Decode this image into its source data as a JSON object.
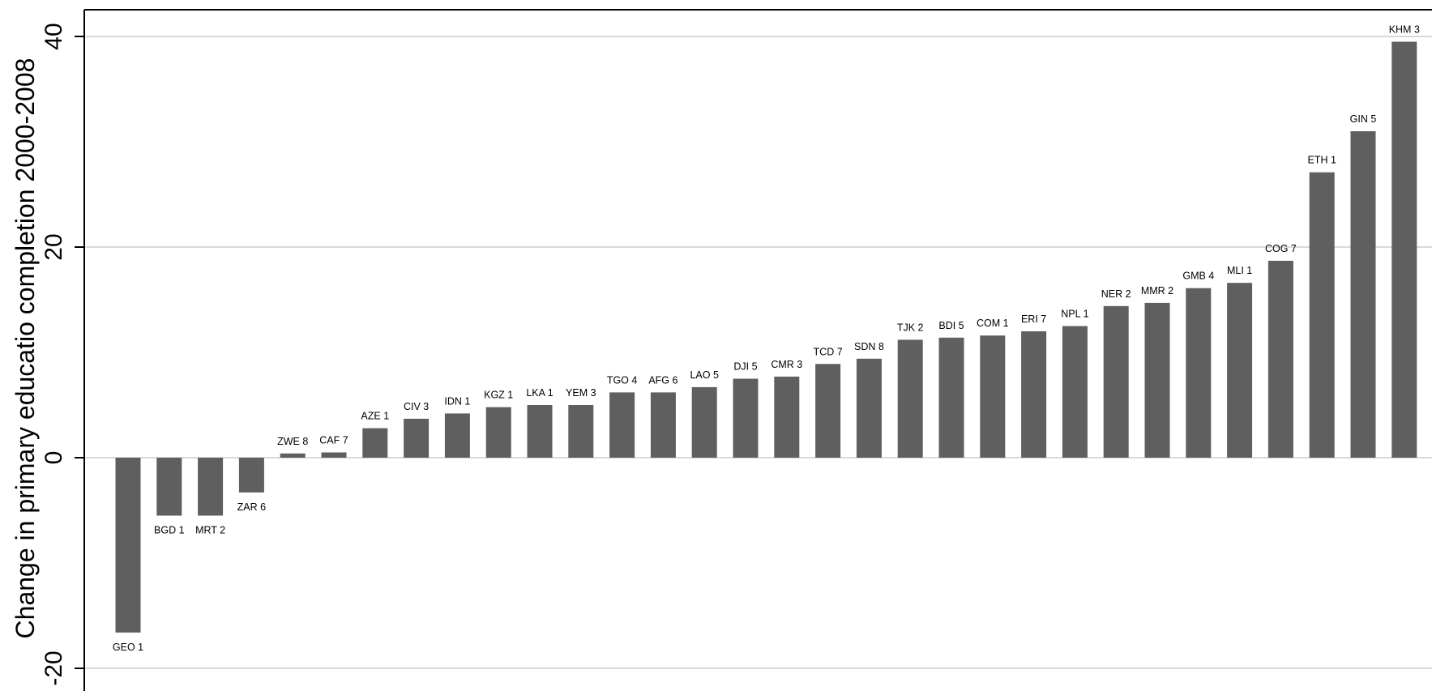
{
  "chart_data": {
    "type": "bar",
    "ylabel": "Change in primary educatio completion 2000-2008",
    "ylim": [
      -22.5,
      42.5
    ],
    "yticks": [
      -20,
      0,
      20,
      40
    ],
    "ytick_labels": [
      "-20",
      "0",
      "20",
      "40"
    ],
    "grid": true,
    "colors": {
      "bar": "#5f5f5f",
      "grid": "#d9d9d9",
      "axis": "#000000",
      "background": "#ffffff"
    },
    "categories": [
      "GEO 1",
      "BGD 1",
      "MRT 2",
      "ZAR 6",
      "ZWE 8",
      "CAF 7",
      "AZE 1",
      "CIV 3",
      "IDN 1",
      "KGZ 1",
      "LKA 1",
      "YEM 3",
      "TGO 4",
      "AFG 6",
      "LAO 5",
      "DJI 5",
      "CMR 3",
      "TCD 7",
      "SDN 8",
      "TJK 2",
      "BDI 5",
      "COM 1",
      "ERI 7",
      "NPL 1",
      "NER 2",
      "MMR 2",
      "GMB 4",
      "MLI 1",
      "COG 7",
      "ETH 1",
      "GIN 5",
      "KHM 3"
    ],
    "values": [
      -16.6,
      -5.5,
      -5.5,
      -3.3,
      0.4,
      0.5,
      2.8,
      3.7,
      4.2,
      4.8,
      5.0,
      5.0,
      6.2,
      6.2,
      6.7,
      7.5,
      7.7,
      8.9,
      9.4,
      11.2,
      11.4,
      11.6,
      12.0,
      12.5,
      14.4,
      14.7,
      16.1,
      16.6,
      18.7,
      27.1,
      31.0,
      39.5
    ]
  }
}
